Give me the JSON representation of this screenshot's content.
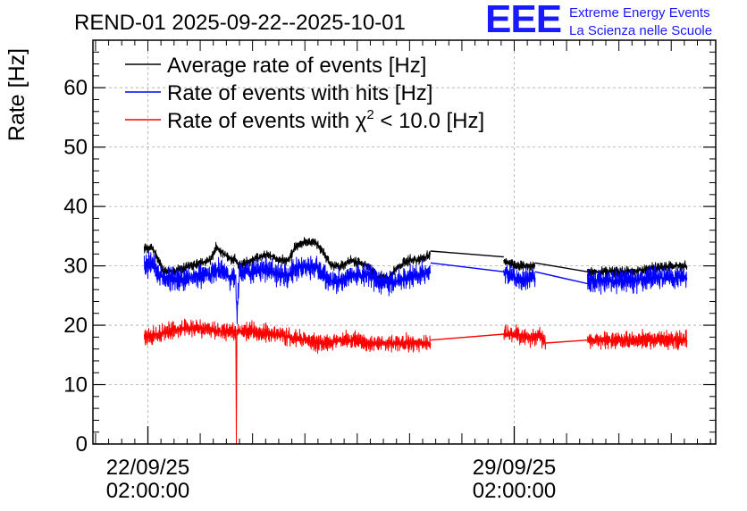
{
  "logo": {
    "mark": "EEE",
    "line1": "Extreme Energy Events",
    "line2": "La Scienza nelle Scuole"
  },
  "colors": {
    "average": "#000000",
    "hits": "#0000ff",
    "chi2": "#ff0000",
    "grid": "#aaaaaa",
    "logo": "#1a1aff"
  },
  "chart_data": {
    "type": "line",
    "title": "REND-01 2025-09-22--2025-10-01",
    "ylabel": "Rate [Hz]",
    "xlabel": "",
    "ylim": [
      0,
      68
    ],
    "xlim_days": [
      -1.05,
      10.85
    ],
    "grid": true,
    "legend_position": "top-left",
    "y_ticks": [
      0,
      10,
      20,
      30,
      40,
      50,
      60
    ],
    "x_ticks": [
      {
        "day": 0,
        "label_date": "22/09/25",
        "label_time": "02:00:00"
      },
      {
        "day": 7,
        "label_date": "29/09/25",
        "label_time": "02:00:00"
      }
    ],
    "legend": [
      {
        "key": "average",
        "label": "Average rate of events [Hz]"
      },
      {
        "key": "hits",
        "label": "Rate of events with hits [Hz]"
      },
      {
        "key": "chi2",
        "label_prefix": "Rate of events with ",
        "label_symbol": "χ",
        "label_sup": "2",
        "label_suffix": " < 10.0 [Hz]"
      }
    ],
    "series": [
      {
        "name": "Average rate of events [Hz]",
        "key": "average",
        "noise": 0.5,
        "segments": [
          {
            "x": [
              -0.07,
              0.1,
              0.2,
              0.3,
              0.5,
              0.8,
              1.2,
              1.3,
              1.6,
              1.68,
              1.75,
              2.0,
              2.3,
              2.5,
              2.7,
              2.8,
              3.0,
              3.2,
              3.3,
              3.5,
              3.7,
              3.9,
              4.2,
              4.4,
              4.6,
              4.8,
              5.0,
              5.2,
              5.4
            ],
            "y": [
              33,
              33,
              31,
              29,
              29,
              30,
              31,
              33,
              31,
              31,
              30,
              31,
              32,
              31,
              31,
              33,
              34,
              34,
              33,
              30,
              30,
              31,
              30,
              28,
              28,
              30,
              31,
              31,
              32
            ]
          },
          {
            "x": [
              5.4,
              6.8
            ],
            "y": [
              32.5,
              31.5
            ]
          },
          {
            "x": [
              6.8,
              7.0,
              7.2,
              7.4
            ],
            "y": [
              31,
              30,
              30,
              30
            ]
          },
          {
            "x": [
              7.4,
              8.4
            ],
            "y": [
              30.5,
              29
            ]
          },
          {
            "x": [
              8.4,
              8.8,
              9.2,
              9.6,
              10.0,
              10.3
            ],
            "y": [
              29,
              29,
              29,
              29.5,
              30,
              30
            ]
          }
        ]
      },
      {
        "name": "Rate of events with hits [Hz]",
        "key": "hits",
        "noise": 1.2,
        "segments": [
          {
            "x": [
              -0.07,
              0.1,
              0.2,
              0.3,
              0.5,
              0.8,
              1.2,
              1.3,
              1.6,
              1.68,
              1.7,
              1.75,
              2.0,
              2.3,
              2.5,
              2.7,
              2.8,
              3.0,
              3.2,
              3.3,
              3.5,
              3.7,
              3.9,
              4.2,
              4.4,
              4.6,
              4.8,
              5.0,
              5.2,
              5.4
            ],
            "y": [
              30,
              30,
              28.5,
              28,
              27.5,
              28,
              28.5,
              29.5,
              28,
              28,
              21,
              29,
              29,
              29.5,
              28.5,
              28.5,
              29.5,
              30,
              30,
              29,
              27.5,
              27.5,
              28.5,
              28.5,
              27.5,
              27,
              27.5,
              28,
              28.5,
              29
            ]
          },
          {
            "x": [
              5.4,
              6.8
            ],
            "y": [
              30.5,
              29
            ]
          },
          {
            "x": [
              6.8,
              7.0,
              7.2,
              7.4
            ],
            "y": [
              29,
              28,
              27.5,
              28
            ]
          },
          {
            "x": [
              7.4,
              8.4
            ],
            "y": [
              29,
              27
            ]
          },
          {
            "x": [
              8.4,
              8.8,
              9.2,
              9.6,
              10.0,
              10.3
            ],
            "y": [
              27.5,
              27.5,
              27.5,
              28,
              28,
              28
            ]
          }
        ]
      },
      {
        "name": "Rate of events with χ2 < 10.0 [Hz]",
        "key": "chi2",
        "noise": 0.9,
        "segments": [
          {
            "x": [
              -0.07,
              0.2,
              0.4,
              0.7,
              1.0,
              1.3,
              1.6,
              1.68,
              1.69,
              1.7,
              1.75,
              2.0,
              2.3,
              2.5,
              2.7,
              3.0,
              3.2,
              3.4,
              3.7,
              3.9,
              4.1,
              4.4,
              4.7,
              5.0,
              5.2,
              5.4
            ],
            "y": [
              18,
              18.5,
              19,
              19.5,
              19.5,
              19,
              19,
              19,
              0,
              19,
              19,
              19,
              18.5,
              18.5,
              18,
              17.5,
              17,
              17,
              17.5,
              17.5,
              17,
              17,
              17,
              17,
              17,
              17
            ]
          },
          {
            "x": [
              5.4,
              6.8
            ],
            "y": [
              17.5,
              18.5
            ]
          },
          {
            "x": [
              6.8,
              7.0,
              7.3,
              7.5,
              7.6
            ],
            "y": [
              18.5,
              18.5,
              18,
              18,
              17
            ]
          },
          {
            "x": [
              7.6,
              8.4
            ],
            "y": [
              17,
              17.5
            ]
          },
          {
            "x": [
              8.4,
              8.8,
              9.2,
              9.6,
              10.0,
              10.3
            ],
            "y": [
              17.5,
              17.5,
              17.5,
              17.5,
              17.5,
              17.5
            ]
          }
        ]
      }
    ]
  }
}
